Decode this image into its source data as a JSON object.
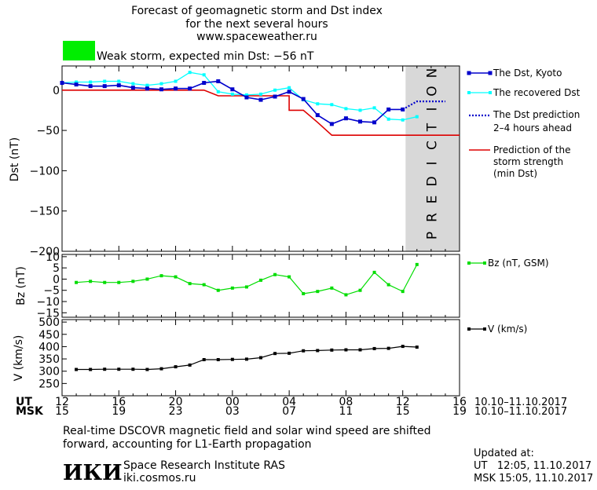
{
  "header": {
    "title_line1": "Forecast of geomagnetic storm and Dst index",
    "title_line2": "for the next several hours",
    "title_line3": "www.spaceweather.ru",
    "storm_label": "Weak storm, expected min Dst: −56 nT",
    "storm_color": "#00ee00"
  },
  "colors": {
    "dst_kyoto": "#0000cc",
    "recovered": "#00ffff",
    "prediction_line": "#0000cc",
    "storm_strength": "#dd0000",
    "bz": "#00dd00",
    "v": "#000000",
    "prediction_band": "#d8d8d8"
  },
  "chart_data": [
    {
      "type": "line",
      "ylabel": "Dst (nT)",
      "ylim": [
        -200,
        30
      ],
      "yticks": [
        0,
        -50,
        -100,
        -150,
        -200
      ],
      "ytick_labels": [
        "0",
        "−50",
        "−100",
        "−150",
        "−200"
      ],
      "prediction_band_label": "PREDICTION",
      "series": [
        {
          "name": "The Dst, Kyoto",
          "x": [
            0,
            1,
            2,
            3,
            4,
            5,
            6,
            7,
            8,
            9,
            10,
            11,
            12,
            13,
            14,
            15,
            16,
            17,
            18,
            19,
            20,
            21,
            22,
            23,
            24
          ],
          "values": [
            9,
            7,
            5,
            5,
            6,
            3,
            2,
            1,
            2,
            2,
            9,
            11,
            1,
            -9,
            -12,
            -8,
            -2,
            -11,
            -31,
            -42,
            -35,
            -39,
            -40,
            -24,
            -24
          ]
        },
        {
          "name": "The recovered Dst",
          "x": [
            0,
            1,
            2,
            3,
            4,
            5,
            6,
            7,
            8,
            9,
            10,
            11,
            12,
            13,
            14,
            15,
            16,
            17,
            18,
            19,
            20,
            21,
            22,
            23,
            24,
            25
          ],
          "values": [
            9,
            10,
            10,
            11,
            11,
            8,
            6,
            8,
            11,
            22,
            19,
            -2,
            -5,
            -6,
            -5,
            0,
            3,
            -12,
            -17,
            -18,
            -23,
            -25,
            -22,
            -36,
            -37,
            -33
          ]
        },
        {
          "name": "The Dst prediction 2–4 hours ahead",
          "x": [
            24,
            25,
            26,
            27
          ],
          "values": [
            -24,
            -14,
            -14,
            -14
          ]
        },
        {
          "name": "Prediction of the storm strength (min Dst)",
          "x": [
            0,
            10,
            11,
            16,
            16,
            17,
            18,
            19,
            28
          ],
          "values": [
            0,
            0,
            -7,
            -7,
            -25,
            -25,
            -40,
            -56,
            -56
          ]
        }
      ]
    },
    {
      "type": "line",
      "ylabel": "Bz (nT)",
      "ylim": [
        -17,
        11
      ],
      "yticks": [
        10,
        5,
        0,
        -5,
        -10,
        -15
      ],
      "ytick_labels": [
        "10",
        "5",
        "0",
        "−5",
        "−10",
        "−15"
      ],
      "series": [
        {
          "name": "Bz (nT, GSM)",
          "x": [
            1,
            2,
            3,
            4,
            5,
            6,
            7,
            8,
            9,
            10,
            11,
            12,
            13,
            14,
            15,
            16,
            17,
            18,
            19,
            20,
            21,
            22,
            23,
            24,
            25
          ],
          "values": [
            -1.5,
            -1,
            -1.5,
            -1.5,
            -1,
            0,
            1.5,
            1,
            -2,
            -2.5,
            -5,
            -4,
            -3.5,
            -0.5,
            2,
            1,
            -6.5,
            -5.5,
            -4,
            -7,
            -5,
            3,
            -2.5,
            -5.5,
            6.5
          ]
        }
      ]
    },
    {
      "type": "line",
      "ylabel": "V (km/s)",
      "ylim": [
        200,
        510
      ],
      "yticks": [
        500,
        450,
        400,
        350,
        300,
        250
      ],
      "ytick_labels": [
        "500",
        "450",
        "400",
        "350",
        "300",
        "250"
      ],
      "series": [
        {
          "name": "V (km/s)",
          "x": [
            1,
            2,
            3,
            4,
            5,
            6,
            7,
            8,
            9,
            10,
            11,
            12,
            13,
            14,
            15,
            16,
            17,
            18,
            19,
            20,
            21,
            22,
            23,
            24,
            25
          ],
          "values": [
            307,
            307,
            308,
            308,
            308,
            307,
            310,
            318,
            325,
            347,
            347,
            348,
            349,
            355,
            372,
            373,
            383,
            384,
            386,
            387,
            387,
            392,
            393,
            401,
            398
          ]
        }
      ]
    }
  ],
  "xaxis": {
    "ut_label": "UT",
    "msk_label": "MSK",
    "ticks_x": [
      0,
      4,
      8,
      12,
      16,
      20,
      24,
      28
    ],
    "ut_ticks": [
      "12",
      "16",
      "20",
      "00",
      "04",
      "08",
      "12",
      "16"
    ],
    "msk_ticks": [
      "15",
      "19",
      "23",
      "03",
      "07",
      "11",
      "15",
      "19"
    ],
    "ut_date": "10.10–11.10.2017",
    "msk_date": "10.10–11.10.2017"
  },
  "legend": {
    "dst_kyoto": "The Dst, Kyoto",
    "recovered": "The recovered Dst",
    "prediction_l1": "The Dst prediction",
    "prediction_l2": "2–4 hours ahead",
    "strength_l1": "Prediction of the",
    "strength_l2": "storm strength",
    "strength_l3": "(min Dst)",
    "bz": "Bz (nT, GSM)",
    "v": "V (km/s)"
  },
  "footer": {
    "note_line1": "Real-time DSCOVR magnetic field and solar wind speed are shifted",
    "note_line2": "forward, accounting for L1-Earth propagation",
    "logo_text": "ИКИ",
    "institute": "Space Research Institute RAS",
    "website": "iki.cosmos.ru",
    "updated_label": "Updated at:",
    "updated_ut": "UT   12:05, 11.10.2017",
    "updated_msk": "MSK 15:05, 11.10.2017"
  }
}
